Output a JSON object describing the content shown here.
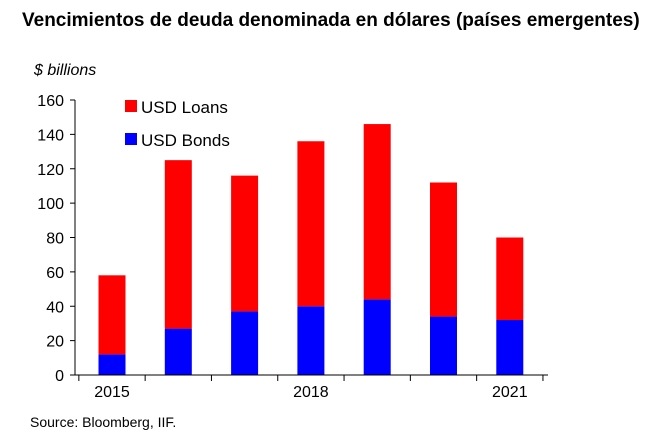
{
  "title": "Vencimientos de deuda denominada en dólares (países emergentes)",
  "source": "Source: Bloomberg, IIF.",
  "colors": {
    "loans": "#ff0000",
    "bonds": "#0000ff"
  },
  "chart_data": {
    "type": "bar",
    "stacked": true,
    "title": "Vencimientos de deuda denominada en dólares (países emergentes)",
    "ylabel": "$ billions",
    "xlabel": "",
    "categories": [
      "2015",
      "2016",
      "2017",
      "2018",
      "2019",
      "2020",
      "2021"
    ],
    "x_tick_labels": [
      "2015",
      "2018",
      "2021"
    ],
    "y_ticks": [
      0,
      20,
      40,
      60,
      80,
      100,
      120,
      140,
      160
    ],
    "ylim": [
      0,
      160
    ],
    "grid": false,
    "legend": "top-left",
    "series": [
      {
        "name": "USD Bonds",
        "color": "#0000ff",
        "values": [
          12,
          27,
          37,
          40,
          44,
          34,
          32
        ]
      },
      {
        "name": "USD Loans",
        "color": "#ff0000",
        "values": [
          46,
          98,
          79,
          96,
          102,
          78,
          48
        ]
      }
    ]
  }
}
